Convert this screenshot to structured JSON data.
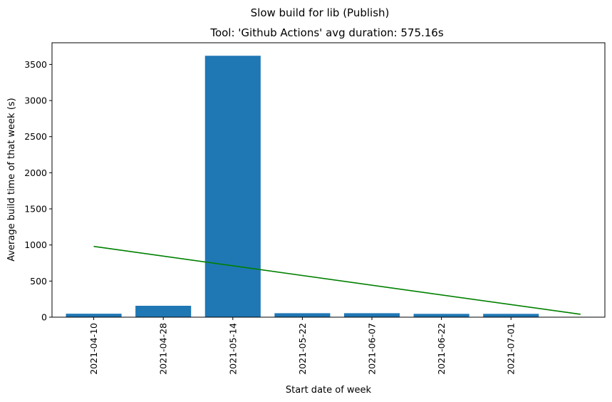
{
  "chart_data": {
    "type": "bar",
    "suptitle": "Slow build for lib (Publish)",
    "title": "Tool: 'Github Actions' avg duration: 575.16s",
    "xlabel": "Start date of week",
    "ylabel": "Average build time of that week (s)",
    "categories": [
      "2021-04-10",
      "2021-04-28",
      "2021-05-14",
      "2021-05-22",
      "2021-06-07",
      "2021-06-22",
      "2021-07-01"
    ],
    "values": [
      48,
      158,
      3620,
      55,
      55,
      46,
      46
    ],
    "ylim": [
      0,
      3800
    ],
    "yticks": [
      0,
      500,
      1000,
      1500,
      2000,
      2500,
      3000,
      3500
    ],
    "xlim": [
      -0.6,
      7.35
    ],
    "trend_line": {
      "x": [
        0,
        7
      ],
      "y": [
        980,
        40
      ]
    },
    "bar_color": "#1f77b4",
    "trend_color": "#008000",
    "grid": false,
    "legend": "none"
  }
}
